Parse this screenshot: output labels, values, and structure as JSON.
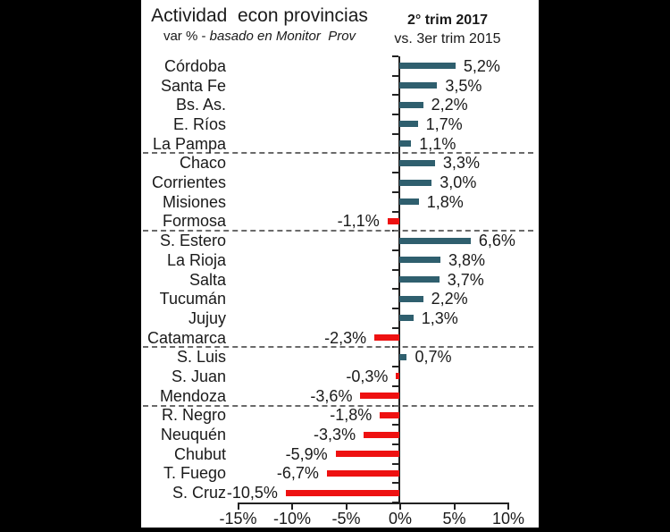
{
  "header": {
    "title": "Actividad  econ provincias",
    "subtitle_prefix": "var % - ",
    "subtitle_italic": "basado en Monitor  Prov",
    "period_line1": "2° trim 2017",
    "period_line2": "vs. 3er trim 2015"
  },
  "colors": {
    "positive_bar": "#2f5f6e",
    "negative_bar": "#ee1111",
    "axis": "#222222",
    "separator": "#6a6a6a",
    "background": "#ffffff",
    "frame": "#000000"
  },
  "chart_data": {
    "type": "bar",
    "orientation": "horizontal",
    "title": "Actividad econ provincias",
    "subtitle": "var % - basado en Monitor Prov",
    "note": "2° trim 2017 vs. 3er trim 2015",
    "xlabel": "",
    "ylabel": "",
    "xlim": [
      -15,
      10
    ],
    "grid": false,
    "x_ticks": [
      "-15%",
      "-10%",
      "-5%",
      "0%",
      "5%",
      "10%"
    ],
    "x_tick_values": [
      -15,
      -10,
      -5,
      0,
      5,
      10
    ],
    "categories": [
      "Córdoba",
      "Santa Fe",
      "Bs. As.",
      "E. Ríos",
      "La Pampa",
      "Chaco",
      "Corrientes",
      "Misiones",
      "Formosa",
      "S. Estero",
      "La Rioja",
      "Salta",
      "Tucumán",
      "Jujuy",
      "Catamarca",
      "S. Luis",
      "S. Juan",
      "Mendoza",
      "R. Negro",
      "Neuquén",
      "Chubut",
      "T. Fuego",
      "S. Cruz"
    ],
    "values": [
      5.2,
      3.5,
      2.2,
      1.7,
      1.1,
      3.3,
      3.0,
      1.8,
      -1.1,
      6.6,
      3.8,
      3.7,
      2.2,
      1.3,
      -2.3,
      0.7,
      -0.3,
      -3.6,
      -1.8,
      -3.3,
      -5.9,
      -6.7,
      -10.5
    ],
    "value_labels": [
      "5,2%",
      "3,5%",
      "2,2%",
      "1,7%",
      "1,1%",
      "3,3%",
      "3,0%",
      "1,8%",
      "-1,1%",
      "6,6%",
      "3,8%",
      "3,7%",
      "2,2%",
      "1,3%",
      "-2,3%",
      "0,7%",
      "-0,3%",
      "-3,6%",
      "-1,8%",
      "-3,3%",
      "-5,9%",
      "-6,7%",
      "-10,5%"
    ],
    "group_sizes": [
      5,
      4,
      6,
      3,
      5
    ]
  }
}
